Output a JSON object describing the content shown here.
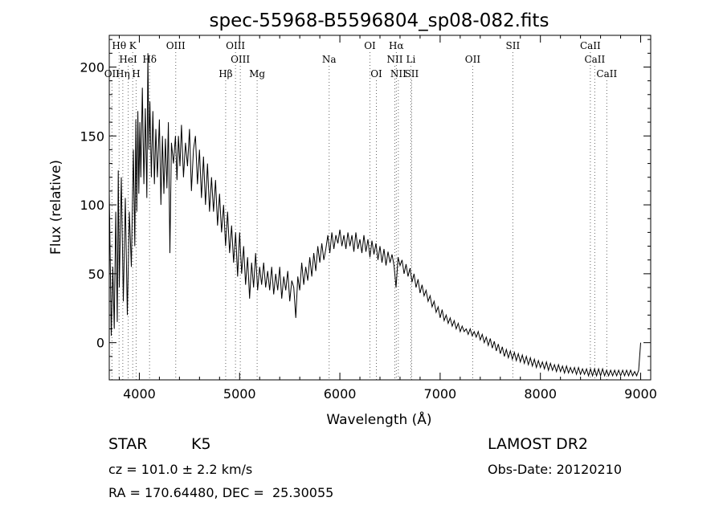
{
  "chart_data": {
    "type": "line",
    "title": "spec-55968-B5596804_sp08-082.fits",
    "xlabel": "Wavelength (Å)",
    "ylabel": "Flux (relative)",
    "xlim": [
      3700,
      9100
    ],
    "ylim": [
      -27,
      223
    ],
    "xticks": [
      4000,
      5000,
      6000,
      7000,
      8000,
      9000
    ],
    "yticks": [
      0,
      50,
      100,
      150,
      200
    ],
    "grid": false,
    "series": [
      {
        "points": [
          [
            3700,
            110
          ],
          [
            3720,
            5
          ],
          [
            3735,
            55
          ],
          [
            3750,
            10
          ],
          [
            3765,
            95
          ],
          [
            3780,
            15
          ],
          [
            3790,
            125
          ],
          [
            3800,
            40
          ],
          [
            3820,
            120
          ],
          [
            3840,
            30
          ],
          [
            3860,
            105
          ],
          [
            3880,
            20
          ],
          [
            3900,
            95
          ],
          [
            3920,
            55
          ],
          [
            3940,
            140
          ],
          [
            3955,
            70
          ],
          [
            3965,
            162
          ],
          [
            3975,
            95
          ],
          [
            3985,
            168
          ],
          [
            3995,
            108
          ],
          [
            4005,
            160
          ],
          [
            4015,
            120
          ],
          [
            4030,
            185
          ],
          [
            4045,
            115
          ],
          [
            4060,
            170
          ],
          [
            4075,
            105
          ],
          [
            4085,
            210
          ],
          [
            4095,
            140
          ],
          [
            4105,
            175
          ],
          [
            4120,
            120
          ],
          [
            4135,
            168
          ],
          [
            4150,
            115
          ],
          [
            4165,
            155
          ],
          [
            4180,
            120
          ],
          [
            4200,
            162
          ],
          [
            4215,
            100
          ],
          [
            4230,
            150
          ],
          [
            4245,
            108
          ],
          [
            4260,
            148
          ],
          [
            4275,
            112
          ],
          [
            4290,
            160
          ],
          [
            4305,
            65
          ],
          [
            4320,
            145
          ],
          [
            4340,
            130
          ],
          [
            4360,
            150
          ],
          [
            4375,
            118
          ],
          [
            4390,
            150
          ],
          [
            4405,
            128
          ],
          [
            4420,
            158
          ],
          [
            4440,
            120
          ],
          [
            4460,
            145
          ],
          [
            4480,
            128
          ],
          [
            4500,
            155
          ],
          [
            4520,
            110
          ],
          [
            4540,
            140
          ],
          [
            4560,
            150
          ],
          [
            4580,
            115
          ],
          [
            4600,
            140
          ],
          [
            4620,
            105
          ],
          [
            4640,
            135
          ],
          [
            4660,
            100
          ],
          [
            4680,
            130
          ],
          [
            4700,
            95
          ],
          [
            4720,
            120
          ],
          [
            4740,
            95
          ],
          [
            4760,
            118
          ],
          [
            4780,
            85
          ],
          [
            4800,
            108
          ],
          [
            4820,
            80
          ],
          [
            4840,
            100
          ],
          [
            4860,
            70
          ],
          [
            4880,
            95
          ],
          [
            4900,
            65
          ],
          [
            4920,
            85
          ],
          [
            4940,
            58
          ],
          [
            4960,
            80
          ],
          [
            4980,
            48
          ],
          [
            5000,
            80
          ],
          [
            5020,
            50
          ],
          [
            5040,
            70
          ],
          [
            5060,
            42
          ],
          [
            5080,
            62
          ],
          [
            5100,
            32
          ],
          [
            5120,
            58
          ],
          [
            5140,
            40
          ],
          [
            5160,
            65
          ],
          [
            5180,
            38
          ],
          [
            5200,
            55
          ],
          [
            5220,
            42
          ],
          [
            5240,
            58
          ],
          [
            5260,
            40
          ],
          [
            5280,
            52
          ],
          [
            5300,
            38
          ],
          [
            5320,
            55
          ],
          [
            5340,
            35
          ],
          [
            5360,
            50
          ],
          [
            5380,
            38
          ],
          [
            5400,
            55
          ],
          [
            5420,
            32
          ],
          [
            5440,
            48
          ],
          [
            5460,
            38
          ],
          [
            5480,
            52
          ],
          [
            5500,
            30
          ],
          [
            5520,
            45
          ],
          [
            5540,
            40
          ],
          [
            5560,
            18
          ],
          [
            5580,
            48
          ],
          [
            5600,
            38
          ],
          [
            5620,
            58
          ],
          [
            5640,
            42
          ],
          [
            5660,
            55
          ],
          [
            5680,
            45
          ],
          [
            5700,
            62
          ],
          [
            5720,
            48
          ],
          [
            5740,
            65
          ],
          [
            5760,
            52
          ],
          [
            5780,
            70
          ],
          [
            5800,
            58
          ],
          [
            5820,
            72
          ],
          [
            5840,
            60
          ],
          [
            5860,
            68
          ],
          [
            5880,
            78
          ],
          [
            5900,
            65
          ],
          [
            5920,
            80
          ],
          [
            5940,
            68
          ],
          [
            5960,
            78
          ],
          [
            5980,
            72
          ],
          [
            6000,
            82
          ],
          [
            6020,
            70
          ],
          [
            6040,
            78
          ],
          [
            6060,
            68
          ],
          [
            6080,
            80
          ],
          [
            6100,
            70
          ],
          [
            6120,
            78
          ],
          [
            6140,
            66
          ],
          [
            6160,
            80
          ],
          [
            6180,
            68
          ],
          [
            6200,
            75
          ],
          [
            6220,
            65
          ],
          [
            6240,
            78
          ],
          [
            6260,
            66
          ],
          [
            6280,
            75
          ],
          [
            6300,
            62
          ],
          [
            6320,
            74
          ],
          [
            6340,
            64
          ],
          [
            6360,
            72
          ],
          [
            6380,
            60
          ],
          [
            6400,
            70
          ],
          [
            6420,
            58
          ],
          [
            6440,
            68
          ],
          [
            6460,
            56
          ],
          [
            6480,
            66
          ],
          [
            6500,
            58
          ],
          [
            6520,
            64
          ],
          [
            6540,
            56
          ],
          [
            6560,
            40
          ],
          [
            6580,
            62
          ],
          [
            6600,
            56
          ],
          [
            6620,
            60
          ],
          [
            6640,
            50
          ],
          [
            6660,
            57
          ],
          [
            6680,
            48
          ],
          [
            6700,
            54
          ],
          [
            6720,
            44
          ],
          [
            6740,
            50
          ],
          [
            6760,
            40
          ],
          [
            6780,
            46
          ],
          [
            6800,
            36
          ],
          [
            6820,
            42
          ],
          [
            6840,
            34
          ],
          [
            6860,
            38
          ],
          [
            6880,
            30
          ],
          [
            6900,
            34
          ],
          [
            6920,
            26
          ],
          [
            6940,
            30
          ],
          [
            6960,
            22
          ],
          [
            6980,
            26
          ],
          [
            7000,
            18
          ],
          [
            7020,
            24
          ],
          [
            7040,
            16
          ],
          [
            7060,
            20
          ],
          [
            7080,
            14
          ],
          [
            7100,
            18
          ],
          [
            7120,
            12
          ],
          [
            7140,
            16
          ],
          [
            7160,
            10
          ],
          [
            7180,
            14
          ],
          [
            7200,
            8
          ],
          [
            7220,
            12
          ],
          [
            7240,
            8
          ],
          [
            7260,
            10
          ],
          [
            7280,
            6
          ],
          [
            7300,
            10
          ],
          [
            7320,
            5
          ],
          [
            7340,
            8
          ],
          [
            7360,
            4
          ],
          [
            7380,
            8
          ],
          [
            7400,
            2
          ],
          [
            7420,
            6
          ],
          [
            7440,
            0
          ],
          [
            7460,
            4
          ],
          [
            7480,
            -2
          ],
          [
            7500,
            3
          ],
          [
            7520,
            -4
          ],
          [
            7540,
            1
          ],
          [
            7560,
            -6
          ],
          [
            7580,
            -1
          ],
          [
            7600,
            -8
          ],
          [
            7620,
            -3
          ],
          [
            7640,
            -10
          ],
          [
            7660,
            -5
          ],
          [
            7680,
            -11
          ],
          [
            7700,
            -6
          ],
          [
            7720,
            -12
          ],
          [
            7740,
            -7
          ],
          [
            7760,
            -13
          ],
          [
            7780,
            -8
          ],
          [
            7800,
            -14
          ],
          [
            7820,
            -9
          ],
          [
            7840,
            -15
          ],
          [
            7860,
            -10
          ],
          [
            7880,
            -16
          ],
          [
            7900,
            -11
          ],
          [
            7920,
            -17
          ],
          [
            7940,
            -12
          ],
          [
            7960,
            -18
          ],
          [
            7980,
            -13
          ],
          [
            8000,
            -18
          ],
          [
            8020,
            -14
          ],
          [
            8040,
            -19
          ],
          [
            8060,
            -14
          ],
          [
            8080,
            -20
          ],
          [
            8100,
            -15
          ],
          [
            8120,
            -20
          ],
          [
            8140,
            -16
          ],
          [
            8160,
            -21
          ],
          [
            8180,
            -16
          ],
          [
            8200,
            -21
          ],
          [
            8220,
            -17
          ],
          [
            8240,
            -22
          ],
          [
            8260,
            -17
          ],
          [
            8280,
            -22
          ],
          [
            8300,
            -18
          ],
          [
            8320,
            -22
          ],
          [
            8340,
            -18
          ],
          [
            8360,
            -23
          ],
          [
            8380,
            -18
          ],
          [
            8400,
            -23
          ],
          [
            8420,
            -19
          ],
          [
            8440,
            -23
          ],
          [
            8460,
            -19
          ],
          [
            8480,
            -24
          ],
          [
            8500,
            -19
          ],
          [
            8520,
            -24
          ],
          [
            8540,
            -19
          ],
          [
            8560,
            -24
          ],
          [
            8580,
            -19
          ],
          [
            8600,
            -24
          ],
          [
            8620,
            -19
          ],
          [
            8640,
            -24
          ],
          [
            8660,
            -20
          ],
          [
            8680,
            -24
          ],
          [
            8700,
            -20
          ],
          [
            8720,
            -24
          ],
          [
            8740,
            -20
          ],
          [
            8760,
            -24
          ],
          [
            8780,
            -20
          ],
          [
            8800,
            -24
          ],
          [
            8820,
            -20
          ],
          [
            8840,
            -24
          ],
          [
            8860,
            -20
          ],
          [
            8880,
            -24
          ],
          [
            8900,
            -20
          ],
          [
            8920,
            -24
          ],
          [
            8940,
            -21
          ],
          [
            8960,
            -24
          ],
          [
            8980,
            -20
          ],
          [
            9000,
            0
          ]
        ]
      }
    ],
    "lines": [
      {
        "label": "Hθ",
        "wave": 3798,
        "row": 0
      },
      {
        "label": "K",
        "wave": 3934,
        "row": 0
      },
      {
        "label": "OIII",
        "wave": 4363,
        "row": 0
      },
      {
        "label": "OIII",
        "wave": 4959,
        "row": 0
      },
      {
        "label": "OI",
        "wave": 6300,
        "row": 0
      },
      {
        "label": "Hα",
        "wave": 6563,
        "row": 0
      },
      {
        "label": "SII",
        "wave": 7725,
        "row": 0
      },
      {
        "label": "CaII",
        "wave": 8498,
        "row": 0
      },
      {
        "label": "HeI",
        "wave": 3889,
        "row": 1
      },
      {
        "label": "Hδ",
        "wave": 4102,
        "row": 1
      },
      {
        "label": "OIII",
        "wave": 5007,
        "row": 1
      },
      {
        "label": "Na",
        "wave": 5893,
        "row": 1
      },
      {
        "label": "NII",
        "wave": 6548,
        "row": 1
      },
      {
        "label": "Li",
        "wave": 6708,
        "row": 1
      },
      {
        "label": "OII",
        "wave": 7325,
        "row": 1
      },
      {
        "label": "CaII",
        "wave": 8542,
        "row": 1
      },
      {
        "label": "OII",
        "wave": 3727,
        "row": 2
      },
      {
        "label": "Hη",
        "wave": 3835,
        "row": 2
      },
      {
        "label": "H",
        "wave": 3968,
        "row": 2
      },
      {
        "label": "Hβ",
        "wave": 4861,
        "row": 2
      },
      {
        "label": "Mg",
        "wave": 5175,
        "row": 2
      },
      {
        "label": "OI",
        "wave": 6364,
        "row": 2
      },
      {
        "label": "NII",
        "wave": 6583,
        "row": 2
      },
      {
        "label": "SII",
        "wave": 6716,
        "row": 2
      },
      {
        "label": "CaII",
        "wave": 8662,
        "row": 2
      }
    ]
  },
  "info": {
    "object_class": "STAR",
    "subclass": "K5",
    "survey": "LAMOST DR2",
    "cz": "cz = 101.0 ± 2.2 km/s",
    "obs_date": "Obs-Date: 20120210",
    "coords": "RA = 170.64480, DEC =  25.30055"
  }
}
